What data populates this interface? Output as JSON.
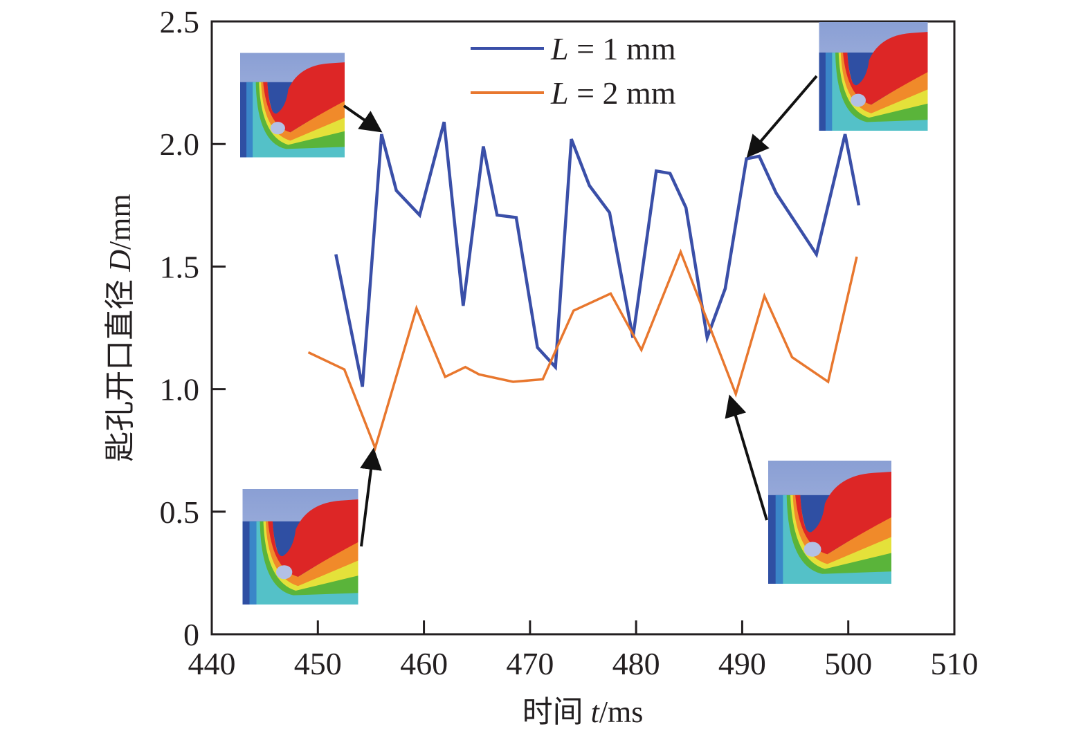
{
  "chart_data": {
    "type": "line",
    "title": "",
    "xlabel": "时间 t/ms",
    "xlabel_parts": {
      "prefix": "时间 ",
      "var": "t",
      "unit": "/ms"
    },
    "ylabel": "匙孔开口直径 D/mm",
    "ylabel_parts": {
      "prefix": "匙孔开口直径 ",
      "var": "D",
      "unit": "/mm"
    },
    "xlim": [
      440,
      510
    ],
    "ylim": [
      0,
      2.5
    ],
    "xticks": [
      440,
      450,
      460,
      470,
      480,
      490,
      500,
      510
    ],
    "xtick_labels": [
      "440",
      "450",
      "460",
      "470",
      "480",
      "490",
      "500",
      "510"
    ],
    "yticks": [
      0,
      0.5,
      1.0,
      1.5,
      2.0,
      2.5
    ],
    "ytick_labels": [
      "0",
      "0.5",
      "1.0",
      "1.5",
      "2.0",
      "2.5"
    ],
    "grid": false,
    "legend_position": "top-center",
    "series": [
      {
        "name": "L = 1 mm",
        "legend_var": "L",
        "legend_rest": " = 1 mm",
        "color": "#3a4fa8",
        "x": [
          451.7,
          454.2,
          456.0,
          457.4,
          459.6,
          461.9,
          463.7,
          465.6,
          466.9,
          468.7,
          470.7,
          472.4,
          473.9,
          475.6,
          477.5,
          479.7,
          481.9,
          483.2,
          484.7,
          486.7,
          488.4,
          490.4,
          491.6,
          493.2,
          497.0,
          499.7,
          501.0
        ],
        "y": [
          1.55,
          1.01,
          2.04,
          1.81,
          1.71,
          2.09,
          1.34,
          1.99,
          1.71,
          1.7,
          1.17,
          1.09,
          2.02,
          1.83,
          1.72,
          1.21,
          1.89,
          1.88,
          1.74,
          1.21,
          1.41,
          1.94,
          1.95,
          1.8,
          1.55,
          2.04,
          1.75
        ]
      },
      {
        "name": "L = 2 mm",
        "legend_var": "L",
        "legend_rest": " = 2 mm",
        "color": "#e8772e",
        "x": [
          449.1,
          452.5,
          455.4,
          459.3,
          462.0,
          463.9,
          465.2,
          468.4,
          471.2,
          474.1,
          477.6,
          480.5,
          484.2,
          489.4,
          492.1,
          494.7,
          498.1,
          500.8
        ],
        "y": [
          1.15,
          1.08,
          0.76,
          1.33,
          1.05,
          1.09,
          1.06,
          1.03,
          1.04,
          1.32,
          1.39,
          1.16,
          1.56,
          0.98,
          1.38,
          1.13,
          1.03,
          1.54
        ]
      }
    ],
    "annotations": [
      {
        "type": "inset-image",
        "content": "keyhole-simulation-snapshot",
        "points_to": {
          "series": "L = 1 mm",
          "x": 456.0,
          "y": 2.04
        }
      },
      {
        "type": "inset-image",
        "content": "keyhole-simulation-snapshot",
        "points_to": {
          "series": "L = 1 mm",
          "x": 490.4,
          "y": 1.94
        }
      },
      {
        "type": "inset-image",
        "content": "keyhole-simulation-snapshot",
        "points_to": {
          "series": "L = 2 mm",
          "x": 455.4,
          "y": 0.76
        }
      },
      {
        "type": "inset-image",
        "content": "keyhole-simulation-snapshot",
        "points_to": {
          "series": "L = 2 mm",
          "x": 489.4,
          "y": 0.98
        }
      }
    ]
  }
}
